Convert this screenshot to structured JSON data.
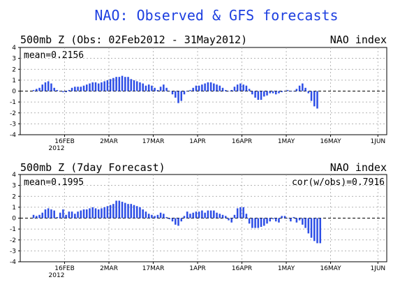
{
  "figure_title": "NAO: Observed & GFS forecasts",
  "colors": {
    "bars": "#2e4fe6",
    "title": "#1d3fe0",
    "grid": "#9a9a9a"
  },
  "chart_data": [
    {
      "type": "bar",
      "title_left": "500mb Z (Obs: 02Feb2012 - 31May2012)",
      "title_right": "NAO index",
      "annotation_left": "mean=0.2156",
      "annotation_right": "",
      "x_start_day": 4,
      "ylim": [
        -4,
        4
      ],
      "yticks": [
        "4",
        "3",
        "2",
        "1",
        "0",
        "-1",
        "-2",
        "-3",
        "-4"
      ],
      "xticks": [
        "16FEB",
        "2MAR",
        "17MAR",
        "1APR",
        "16APR",
        "1MAY",
        "16MAY",
        "1JUN"
      ],
      "x_year_label": "2012",
      "grid": "dashed",
      "values": [
        0.1,
        0.2,
        0.3,
        0.6,
        0.8,
        0.9,
        0.7,
        0.3,
        0.1,
        0,
        -0.1,
        -0.1,
        0.1,
        0.3,
        0.4,
        0.4,
        0.4,
        0.5,
        0.6,
        0.7,
        0.8,
        0.8,
        0.7,
        0.8,
        0.9,
        1,
        1.1,
        1.2,
        1.3,
        1.3,
        1.4,
        1.3,
        1.3,
        1.1,
        1,
        0.9,
        0.8,
        0.7,
        0.5,
        0.6,
        0.5,
        0.3,
        0.1,
        0.4,
        0.6,
        0.3,
        0,
        -0.3,
        -0.6,
        -1.1,
        -0.9,
        -0.3,
        0,
        0.1,
        0.3,
        0.5,
        0.5,
        0.6,
        0.7,
        0.8,
        0.8,
        0.7,
        0.6,
        0.5,
        0.3,
        0.1,
        0,
        0.1,
        0.4,
        0.6,
        0.7,
        0.6,
        0.5,
        0.2,
        -0.3,
        -0.6,
        -0.8,
        -0.8,
        -0.5,
        -0.4,
        -0.2,
        -0.2,
        -0.3,
        -0.2,
        -0.1,
        0,
        0.1,
        0,
        0,
        0.2,
        0.5,
        0.7,
        0.3,
        -0.2,
        -0.9,
        -1.4,
        -1.6
      ]
    },
    {
      "type": "bar",
      "title_left": "500mb Z (7day Forecast)",
      "title_right": "NAO index",
      "annotation_left": "mean=0.1995",
      "annotation_right": "cor(w/obs)=0.7916",
      "x_start_day": 4,
      "ylim": [
        -4,
        4
      ],
      "yticks": [
        "4",
        "3",
        "2",
        "1",
        "0",
        "-1",
        "-2",
        "-3",
        "-4"
      ],
      "xticks": [
        "16FEB",
        "2MAR",
        "17MAR",
        "1APR",
        "16APR",
        "1MAY",
        "16MAY",
        "1JUN"
      ],
      "x_year_label": "2012",
      "grid": "dashed",
      "values": [
        0.3,
        0.2,
        0.3,
        0.5,
        0.8,
        0.9,
        0.8,
        0.7,
        0.1,
        0.5,
        0.8,
        0.3,
        0.6,
        0.6,
        0.4,
        0.6,
        0.7,
        0.8,
        0.8,
        0.9,
        1,
        0.9,
        0.8,
        0.9,
        1,
        1.1,
        1.2,
        1.3,
        1.6,
        1.6,
        1.5,
        1.4,
        1.3,
        1.3,
        1.2,
        1.1,
        1,
        0.8,
        0.6,
        0.4,
        0.3,
        0.2,
        0.3,
        0.5,
        0.4,
        0.1,
        -0.1,
        -0.3,
        -0.6,
        -0.7,
        -0.3,
        0.2,
        0.6,
        0.4,
        0.5,
        0.6,
        0.6,
        0.7,
        0.5,
        0.7,
        0.7,
        0.7,
        0.5,
        0.4,
        0.3,
        0.2,
        -0.2,
        -0.4,
        0.3,
        0.9,
        1,
        1,
        0.4,
        -0.5,
        -0.9,
        -0.9,
        -0.9,
        -0.8,
        -0.7,
        -0.5,
        -0.3,
        -0.1,
        -0.3,
        -0.4,
        0.2,
        0.2,
        0,
        -0.3,
        0.1,
        -0.4,
        -0.2,
        -0.6,
        -0.9,
        -1.4,
        -1.8,
        -2.1,
        -2.3,
        -2.3
      ]
    }
  ]
}
